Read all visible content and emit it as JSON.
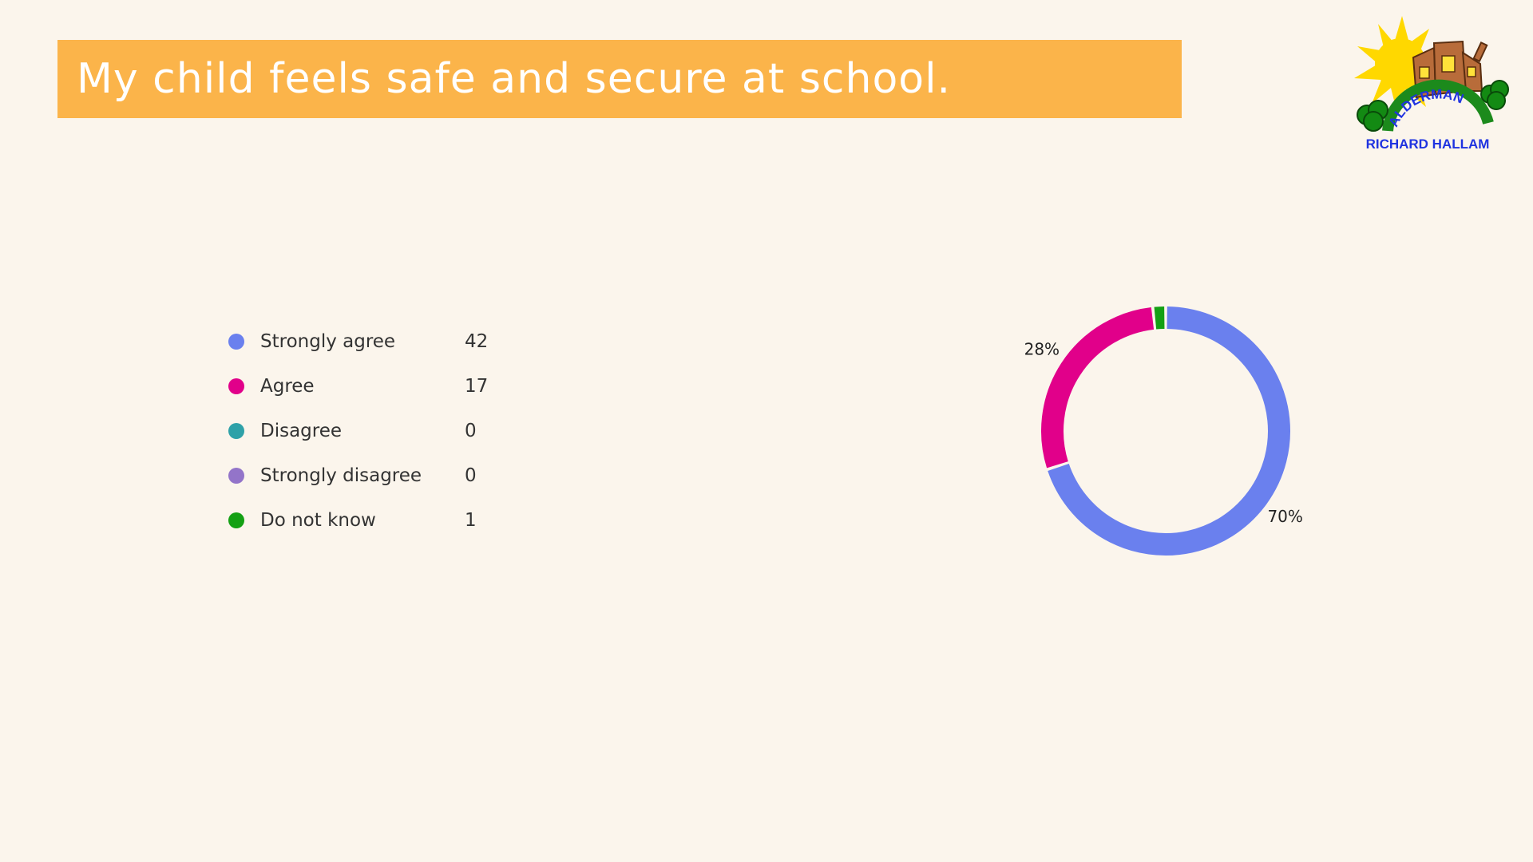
{
  "header": {
    "title": "My child feels safe and secure at school."
  },
  "logo": {
    "top_text": "ALDERMAN",
    "bottom_text": "RICHARD HALLAM"
  },
  "chart_data": {
    "type": "pie",
    "style": "donut",
    "title": "My child feels safe and secure at school.",
    "categories": [
      "Strongly agree",
      "Agree",
      "Disagree",
      "Strongly disagree",
      "Do not know"
    ],
    "values": [
      42,
      17,
      0,
      0,
      1
    ],
    "colors": [
      "#6a80ee",
      "#e1008a",
      "#2ea1a8",
      "#9374c9",
      "#14a014"
    ],
    "legend_position": "left",
    "data_labels": [
      "70%",
      "28%",
      "",
      "",
      ""
    ]
  }
}
